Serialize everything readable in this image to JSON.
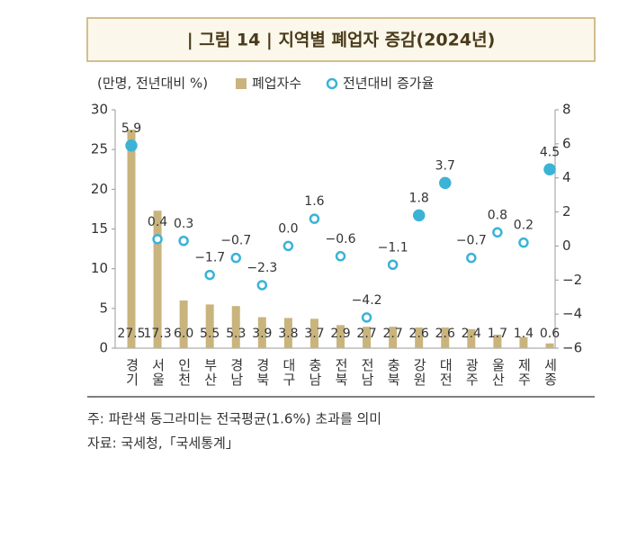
{
  "chart_data": {
    "type": "bar-line",
    "title": "| 그림 14 | 지역별 폐업자 증감(2024년)",
    "unit_label": "(만명, 전년대비 %)",
    "categories": [
      "경기",
      "서울",
      "인천",
      "부산",
      "경남",
      "경북",
      "대구",
      "충남",
      "전북",
      "전남",
      "충북",
      "강원",
      "대전",
      "광주",
      "울산",
      "제주",
      "세종"
    ],
    "series": [
      {
        "name": "폐업자수",
        "type": "bar",
        "color": "#c9b47e",
        "values": [
          27.5,
          17.3,
          6.0,
          5.5,
          5.3,
          3.9,
          3.8,
          3.7,
          2.9,
          2.7,
          2.7,
          2.6,
          2.6,
          2.4,
          1.7,
          1.4,
          0.6
        ],
        "value_labels": [
          "27.5",
          "17.3",
          "6.0",
          "5.5",
          "5.3",
          "3.9",
          "3.8",
          "3.7",
          "2.9",
          "2.7",
          "2.7",
          "2.6",
          "2.6",
          "2.4",
          "1.7",
          "1.4",
          "0.6"
        ]
      },
      {
        "name": "전년대비 증가율",
        "type": "point",
        "axis": "y2",
        "color": "#3ab3d6",
        "highlight_above": 1.6,
        "values": [
          5.9,
          0.4,
          0.3,
          -1.7,
          -0.7,
          -2.3,
          0.0,
          1.6,
          -0.6,
          -4.2,
          -1.1,
          1.8,
          3.7,
          -0.7,
          0.8,
          0.2,
          4.5
        ],
        "value_labels": [
          "5.9",
          "0.4",
          "0.3",
          "−1.7",
          "−0.7",
          "−2.3",
          "0.0",
          "1.6",
          "−0.6",
          "−4.2",
          "−1.1",
          "1.8",
          "3.7",
          "−0.7",
          "0.8",
          "0.2",
          "4.5"
        ]
      }
    ],
    "ylim": [
      0,
      30
    ],
    "yticks": [
      0,
      5,
      10,
      15,
      20,
      25,
      30
    ],
    "y2lim": [
      -6,
      8
    ],
    "y2ticks": [
      {
        "value": -6,
        "label": "−6"
      },
      {
        "value": -4,
        "label": "−4"
      },
      {
        "value": -2,
        "label": "−2"
      },
      0,
      2,
      4,
      6,
      8
    ],
    "notes": [
      "주: 파란색 동그라미는 전국평균(1.6%) 초과를 의미",
      "자료: 국세청,「국세통계」"
    ]
  }
}
